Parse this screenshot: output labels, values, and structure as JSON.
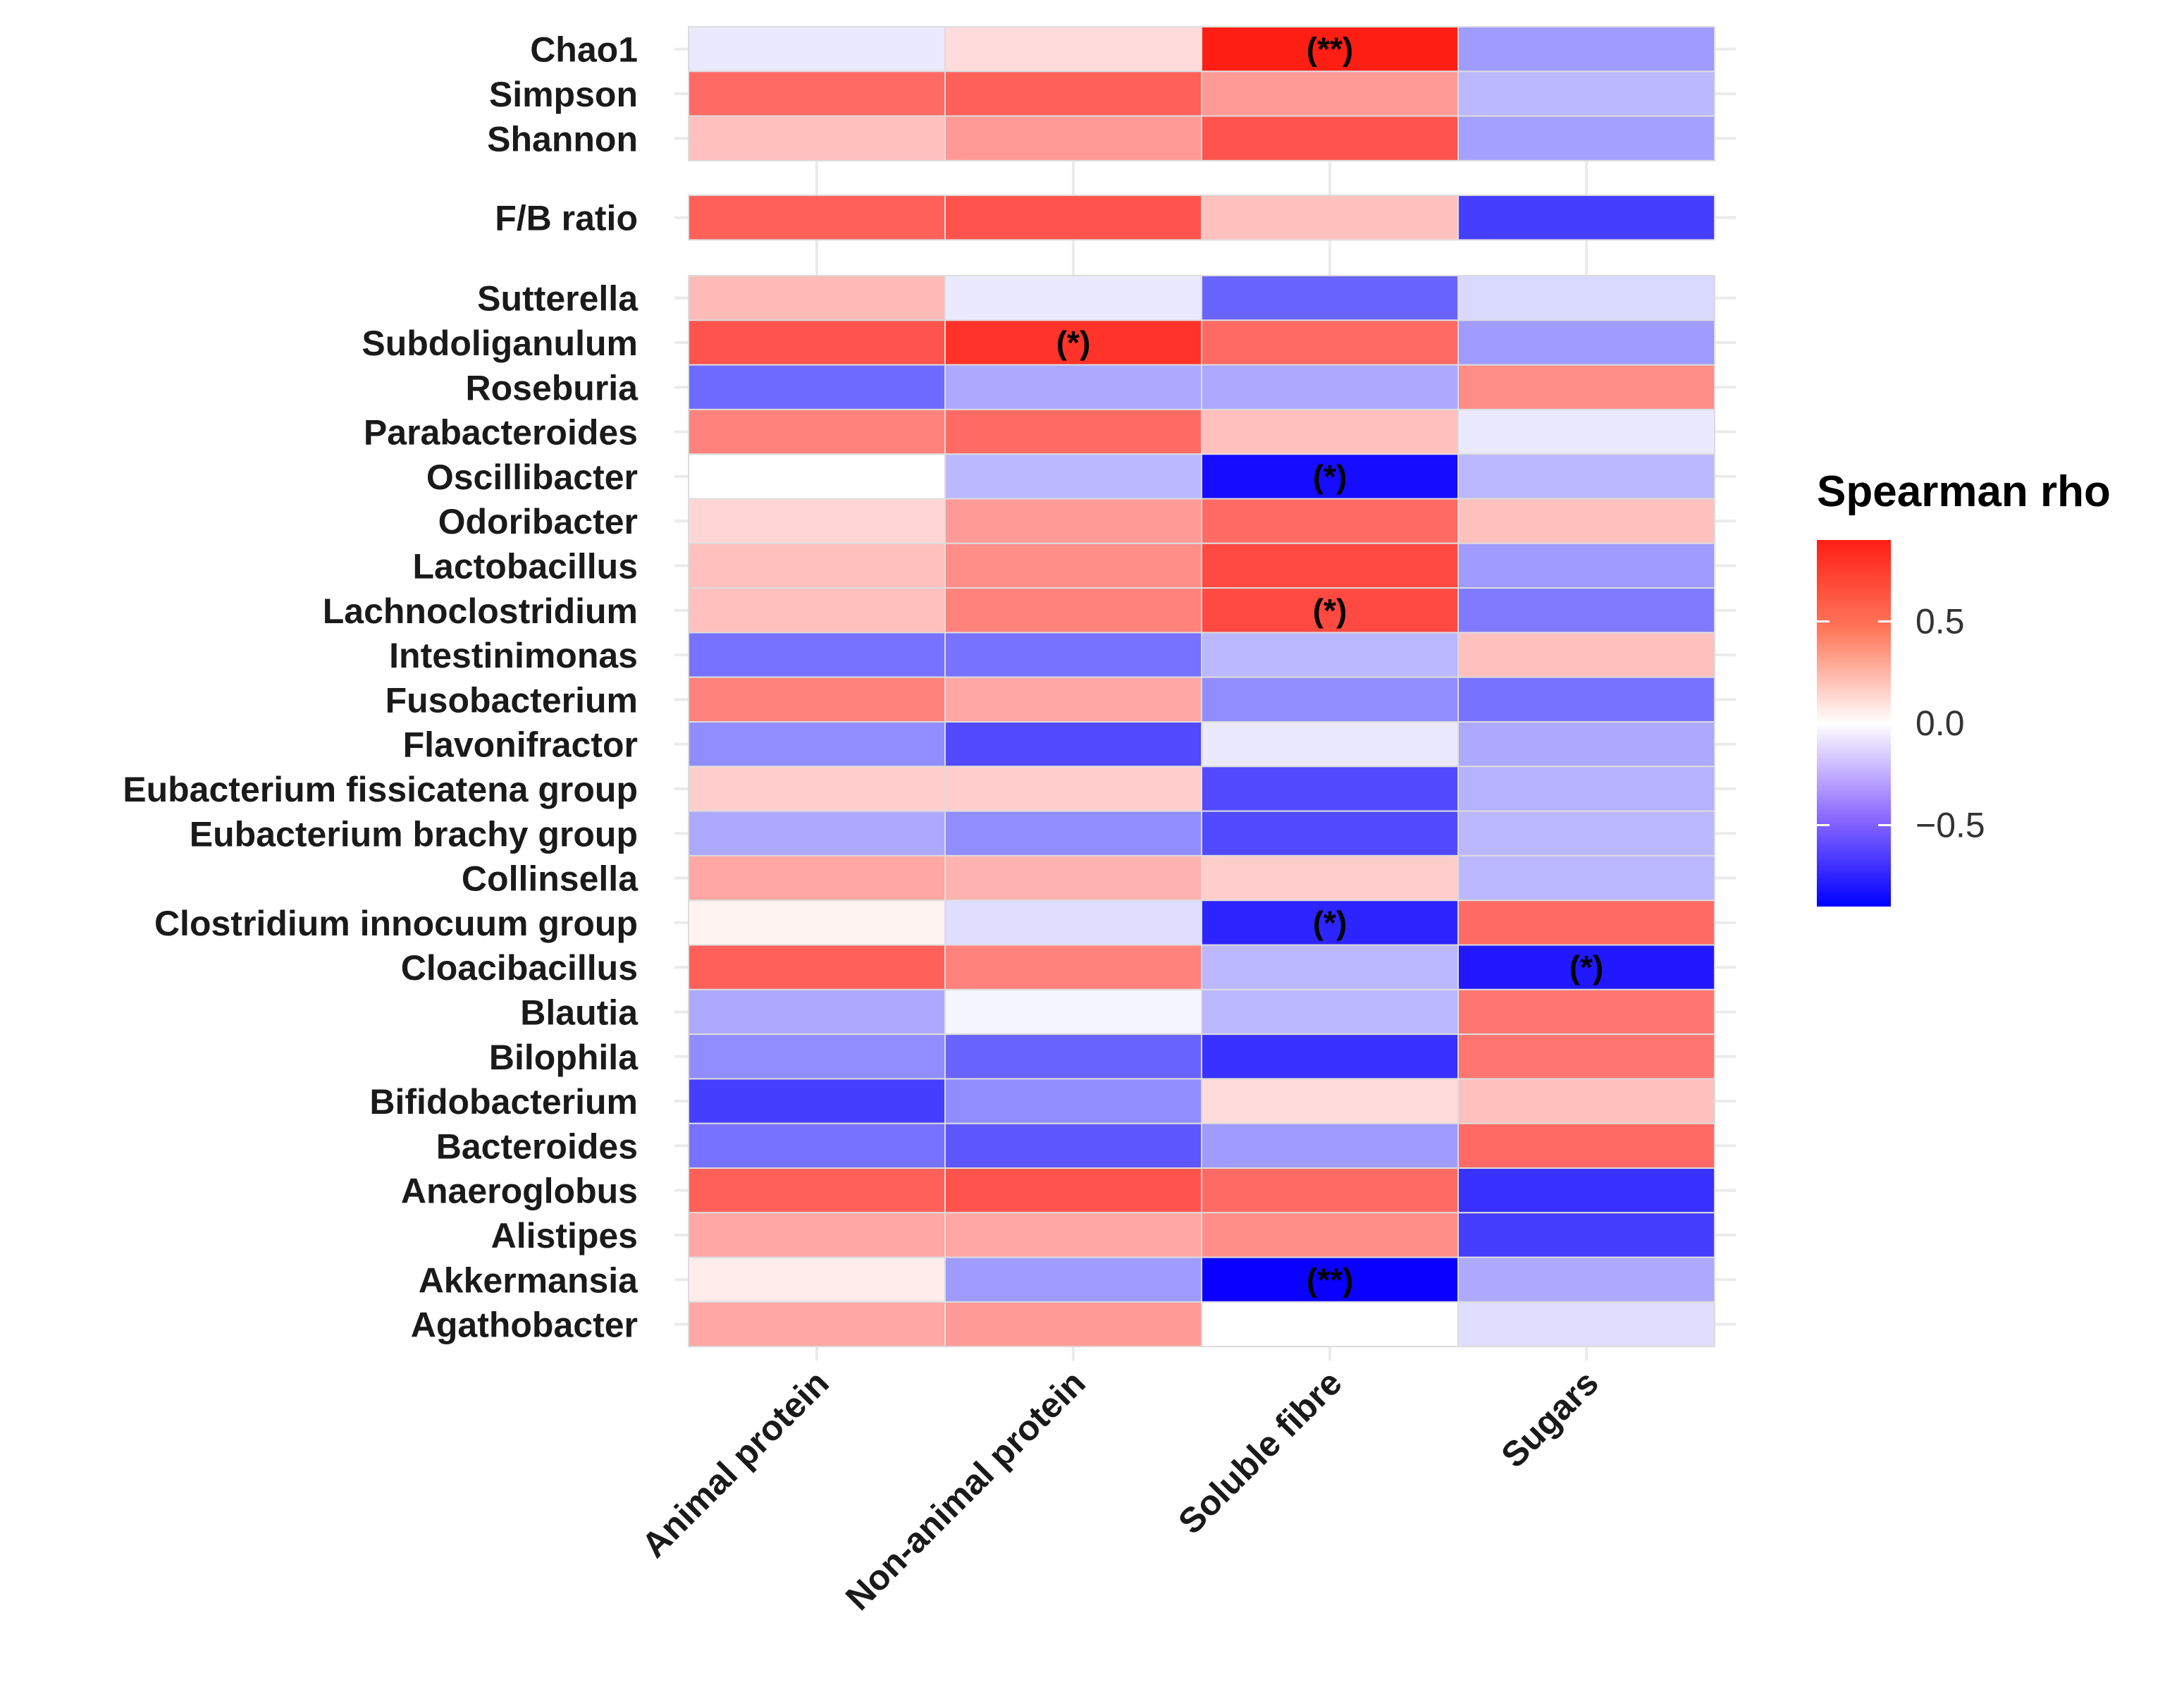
{
  "chart_data": {
    "type": "heatmap",
    "title": "",
    "xlabel": "",
    "ylabel": "",
    "x_categories": [
      "Animal protein",
      "Non-animal protein",
      "Soluble fibre",
      "Sugars"
    ],
    "panels": [
      {
        "name": "diversity",
        "rows": [
          {
            "label": "Chao1",
            "values": [
              -0.05,
              0.1,
              0.92,
              -0.3
            ],
            "sig": [
              "",
              "",
              "(**)",
              ""
            ]
          },
          {
            "label": "Simpson",
            "values": [
              0.55,
              0.6,
              0.35,
              -0.2
            ],
            "sig": [
              "",
              "",
              "",
              ""
            ]
          },
          {
            "label": "Shannon",
            "values": [
              0.2,
              0.35,
              0.65,
              -0.28
            ],
            "sig": [
              "",
              "",
              "",
              ""
            ]
          }
        ]
      },
      {
        "name": "ratio",
        "rows": [
          {
            "label": "F/B ratio",
            "values": [
              0.6,
              0.65,
              0.2,
              -0.65
            ],
            "sig": [
              "",
              "",
              "",
              ""
            ]
          }
        ]
      },
      {
        "name": "genera",
        "rows": [
          {
            "label": "Sutterella",
            "values": [
              0.22,
              -0.05,
              -0.5,
              -0.1
            ],
            "sig": [
              "",
              "",
              "",
              ""
            ]
          },
          {
            "label": "Subdoliganulum",
            "values": [
              0.65,
              0.8,
              0.55,
              -0.3
            ],
            "sig": [
              "",
              "(*)",
              "",
              ""
            ]
          },
          {
            "label": "Roseburia",
            "values": [
              -0.48,
              -0.25,
              -0.25,
              0.4
            ],
            "sig": [
              "",
              "",
              "",
              ""
            ]
          },
          {
            "label": "Parabacteroides",
            "values": [
              0.45,
              0.55,
              0.2,
              -0.05
            ],
            "sig": [
              "",
              "",
              "",
              ""
            ]
          },
          {
            "label": "Oscillibacter",
            "values": [
              0.0,
              -0.2,
              -0.85,
              -0.2
            ],
            "sig": [
              "",
              "",
              "(*)",
              ""
            ]
          },
          {
            "label": "Odoribacter",
            "values": [
              0.12,
              0.35,
              0.55,
              0.2
            ],
            "sig": [
              "",
              "",
              "",
              ""
            ]
          },
          {
            "label": "Lactobacillus",
            "values": [
              0.2,
              0.4,
              0.7,
              -0.3
            ],
            "sig": [
              "",
              "",
              "",
              ""
            ]
          },
          {
            "label": "Lachnoclostridium",
            "values": [
              0.2,
              0.45,
              0.7,
              -0.42
            ],
            "sig": [
              "",
              "",
              "(*)",
              ""
            ]
          },
          {
            "label": "Intestinimonas",
            "values": [
              -0.45,
              -0.45,
              -0.2,
              0.2
            ],
            "sig": [
              "",
              "",
              "",
              ""
            ]
          },
          {
            "label": "Fusobacterium",
            "values": [
              0.45,
              0.3,
              -0.35,
              -0.45
            ],
            "sig": [
              "",
              "",
              "",
              ""
            ]
          },
          {
            "label": "Flavonifractor",
            "values": [
              -0.35,
              -0.6,
              -0.05,
              -0.25
            ],
            "sig": [
              "",
              "",
              "",
              ""
            ]
          },
          {
            "label": "Eubacterium fissicatena group",
            "values": [
              0.15,
              0.15,
              -0.6,
              -0.22
            ],
            "sig": [
              "",
              "",
              "",
              ""
            ]
          },
          {
            "label": "Eubacterium brachy group",
            "values": [
              -0.25,
              -0.35,
              -0.6,
              -0.2
            ],
            "sig": [
              "",
              "",
              "",
              ""
            ]
          },
          {
            "label": "Collinsella",
            "values": [
              0.3,
              0.25,
              0.15,
              -0.2
            ],
            "sig": [
              "",
              "",
              "",
              ""
            ]
          },
          {
            "label": "Clostridium innocuum group",
            "values": [
              0.03,
              -0.08,
              -0.75,
              0.55
            ],
            "sig": [
              "",
              "",
              "(*)",
              ""
            ]
          },
          {
            "label": "Cloacibacillus",
            "values": [
              0.6,
              0.45,
              -0.2,
              -0.8
            ],
            "sig": [
              "",
              "",
              "",
              "(*)"
            ]
          },
          {
            "label": "Blautia",
            "values": [
              -0.25,
              -0.02,
              -0.2,
              0.5
            ],
            "sig": [
              "",
              "",
              "",
              ""
            ]
          },
          {
            "label": "Bilophila",
            "values": [
              -0.35,
              -0.5,
              -0.7,
              0.5
            ],
            "sig": [
              "",
              "",
              "",
              ""
            ]
          },
          {
            "label": "Bifidobacterium",
            "values": [
              -0.65,
              -0.35,
              0.1,
              0.2
            ],
            "sig": [
              "",
              "",
              "",
              ""
            ]
          },
          {
            "label": "Bacteroides",
            "values": [
              -0.45,
              -0.55,
              -0.3,
              0.55
            ],
            "sig": [
              "",
              "",
              "",
              ""
            ]
          },
          {
            "label": "Anaeroglobus",
            "values": [
              0.6,
              0.65,
              0.55,
              -0.7
            ],
            "sig": [
              "",
              "",
              "",
              ""
            ]
          },
          {
            "label": "Alistipes",
            "values": [
              0.3,
              0.3,
              0.4,
              -0.65
            ],
            "sig": [
              "",
              "",
              "",
              ""
            ]
          },
          {
            "label": "Akkermansia",
            "values": [
              0.05,
              -0.3,
              -0.9,
              -0.25
            ],
            "sig": [
              "",
              "",
              "(**)",
              ""
            ]
          },
          {
            "label": "Agathobacter",
            "values": [
              0.3,
              0.35,
              0.0,
              -0.08
            ],
            "sig": [
              "",
              "",
              "",
              ""
            ]
          }
        ]
      }
    ],
    "legend": {
      "title": "Spearman rho",
      "ticks": [
        0.5,
        0.0,
        -0.5
      ],
      "tick_labels": [
        "0.5",
        "0.0",
        "−0.5"
      ],
      "range": [
        -0.9,
        0.9
      ],
      "placement": "right"
    },
    "colors": {
      "low": "#0000ff",
      "mid": "#ffffff",
      "high": "#ff0000"
    }
  }
}
